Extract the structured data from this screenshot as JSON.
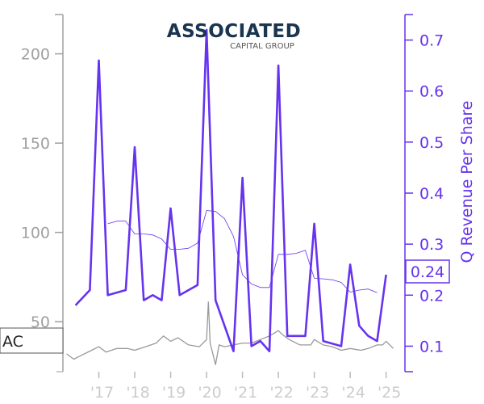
{
  "chart_data": {
    "type": "line",
    "logo": {
      "main": "ASSOCIATED",
      "sub": "CAPITAL GROUP"
    },
    "ticker": "AC",
    "x_ticks": [
      "'17",
      "'18",
      "'19",
      "'20",
      "'21",
      "'22",
      "'23",
      "'24",
      "'25"
    ],
    "left_axis": {
      "ylim": [
        22,
        222
      ],
      "ticks": [
        50,
        100,
        150,
        200
      ],
      "color": "#a0a0a0"
    },
    "right_axis": {
      "label": "Q Revenue Per Share",
      "ylim": [
        0.05,
        0.75
      ],
      "ticks": [
        0.1,
        0.2,
        0.3,
        0.4,
        0.5,
        0.6,
        0.7
      ],
      "tick_labels": [
        "0.1",
        "0.2",
        "0.3",
        "0.4",
        "0.5",
        "0.6",
        "0.7"
      ],
      "current_value_label": "0.24",
      "current_value": 0.24,
      "color": "#6633ee"
    },
    "series": [
      {
        "axis": "right",
        "style": "thick",
        "color": "#6633ee",
        "points": [
          [
            2016.35,
            0.18
          ],
          [
            2016.75,
            0.21
          ],
          [
            2017.0,
            0.66
          ],
          [
            2017.25,
            0.2
          ],
          [
            2017.75,
            0.21
          ],
          [
            2018.0,
            0.49
          ],
          [
            2018.25,
            0.19
          ],
          [
            2018.5,
            0.2
          ],
          [
            2018.75,
            0.19
          ],
          [
            2019.0,
            0.37
          ],
          [
            2019.25,
            0.2
          ],
          [
            2019.75,
            0.22
          ],
          [
            2020.0,
            0.72
          ],
          [
            2020.25,
            0.19
          ],
          [
            2020.75,
            0.09
          ],
          [
            2021.0,
            0.43
          ],
          [
            2021.25,
            0.1
          ],
          [
            2021.5,
            0.11
          ],
          [
            2021.75,
            0.09
          ],
          [
            2022.0,
            0.65
          ],
          [
            2022.25,
            0.12
          ],
          [
            2022.5,
            0.12
          ],
          [
            2022.75,
            0.12
          ],
          [
            2023.0,
            0.34
          ],
          [
            2023.25,
            0.11
          ],
          [
            2023.75,
            0.1
          ],
          [
            2024.0,
            0.26
          ],
          [
            2024.25,
            0.14
          ],
          [
            2024.5,
            0.12
          ],
          [
            2024.75,
            0.11
          ],
          [
            2025.0,
            0.24
          ]
        ]
      },
      {
        "axis": "right",
        "style": "thin",
        "color": "#6633ee",
        "points": [
          [
            2017.25,
            0.34
          ],
          [
            2017.5,
            0.345
          ],
          [
            2017.75,
            0.345
          ],
          [
            2018.0,
            0.32
          ],
          [
            2018.25,
            0.32
          ],
          [
            2018.5,
            0.318
          ],
          [
            2018.75,
            0.31
          ],
          [
            2019.0,
            0.29
          ],
          [
            2019.25,
            0.29
          ],
          [
            2019.5,
            0.292
          ],
          [
            2019.75,
            0.302
          ],
          [
            2020.0,
            0.366
          ],
          [
            2020.25,
            0.364
          ],
          [
            2020.5,
            0.35
          ],
          [
            2020.75,
            0.315
          ],
          [
            2021.0,
            0.24
          ],
          [
            2021.25,
            0.222
          ],
          [
            2021.5,
            0.215
          ],
          [
            2021.75,
            0.215
          ],
          [
            2022.0,
            0.28
          ],
          [
            2022.25,
            0.28
          ],
          [
            2022.5,
            0.282
          ],
          [
            2022.75,
            0.288
          ],
          [
            2023.0,
            0.233
          ],
          [
            2023.25,
            0.232
          ],
          [
            2023.5,
            0.23
          ],
          [
            2023.75,
            0.225
          ],
          [
            2024.0,
            0.206
          ],
          [
            2024.25,
            0.21
          ],
          [
            2024.5,
            0.212
          ],
          [
            2024.75,
            0.205
          ]
        ]
      },
      {
        "axis": "left",
        "style": "price",
        "color": "#999999",
        "points": [
          [
            2016.1,
            32
          ],
          [
            2016.3,
            29
          ],
          [
            2016.5,
            31
          ],
          [
            2016.8,
            34
          ],
          [
            2017.0,
            36
          ],
          [
            2017.2,
            33
          ],
          [
            2017.5,
            35
          ],
          [
            2017.8,
            35
          ],
          [
            2018.0,
            34
          ],
          [
            2018.3,
            36
          ],
          [
            2018.6,
            38
          ],
          [
            2018.8,
            42
          ],
          [
            2019.0,
            39
          ],
          [
            2019.2,
            41
          ],
          [
            2019.5,
            37
          ],
          [
            2019.8,
            36
          ],
          [
            2020.0,
            40
          ],
          [
            2020.05,
            61
          ],
          [
            2020.1,
            38
          ],
          [
            2020.25,
            26
          ],
          [
            2020.35,
            37
          ],
          [
            2020.5,
            36
          ],
          [
            2020.75,
            37
          ],
          [
            2021.0,
            38
          ],
          [
            2021.25,
            38
          ],
          [
            2021.5,
            40
          ],
          [
            2021.75,
            42
          ],
          [
            2022.0,
            45
          ],
          [
            2022.1,
            43
          ],
          [
            2022.3,
            40
          ],
          [
            2022.6,
            37
          ],
          [
            2022.9,
            37
          ],
          [
            2023.0,
            40
          ],
          [
            2023.25,
            37
          ],
          [
            2023.5,
            36
          ],
          [
            2023.75,
            34
          ],
          [
            2024.0,
            35
          ],
          [
            2024.3,
            34
          ],
          [
            2024.5,
            35
          ],
          [
            2024.75,
            37
          ],
          [
            2024.9,
            37
          ],
          [
            2025.0,
            39
          ],
          [
            2025.2,
            35
          ]
        ]
      }
    ]
  }
}
